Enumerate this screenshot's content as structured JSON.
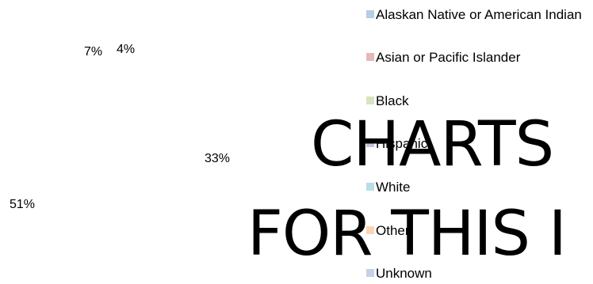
{
  "chart_data": {
    "type": "pie",
    "categories": [
      "Alaskan Native or American Indian",
      "Asian or Pacific Islander",
      "Black",
      "Hispanic",
      "White",
      "Other",
      "Unknown"
    ],
    "data_labels": [
      "7%",
      "4%",
      "33%",
      "51%"
    ],
    "legend_colors": [
      "#b8cce4",
      "#e6b9b8",
      "#d7e4bd",
      "#ccc1da",
      "#b7dee8",
      "#fcd5b5",
      "#c5d1e6"
    ],
    "legend_position": "right"
  },
  "overlay_text": {
    "line1": "CHARTS",
    "line2": "FOR THIS I"
  }
}
